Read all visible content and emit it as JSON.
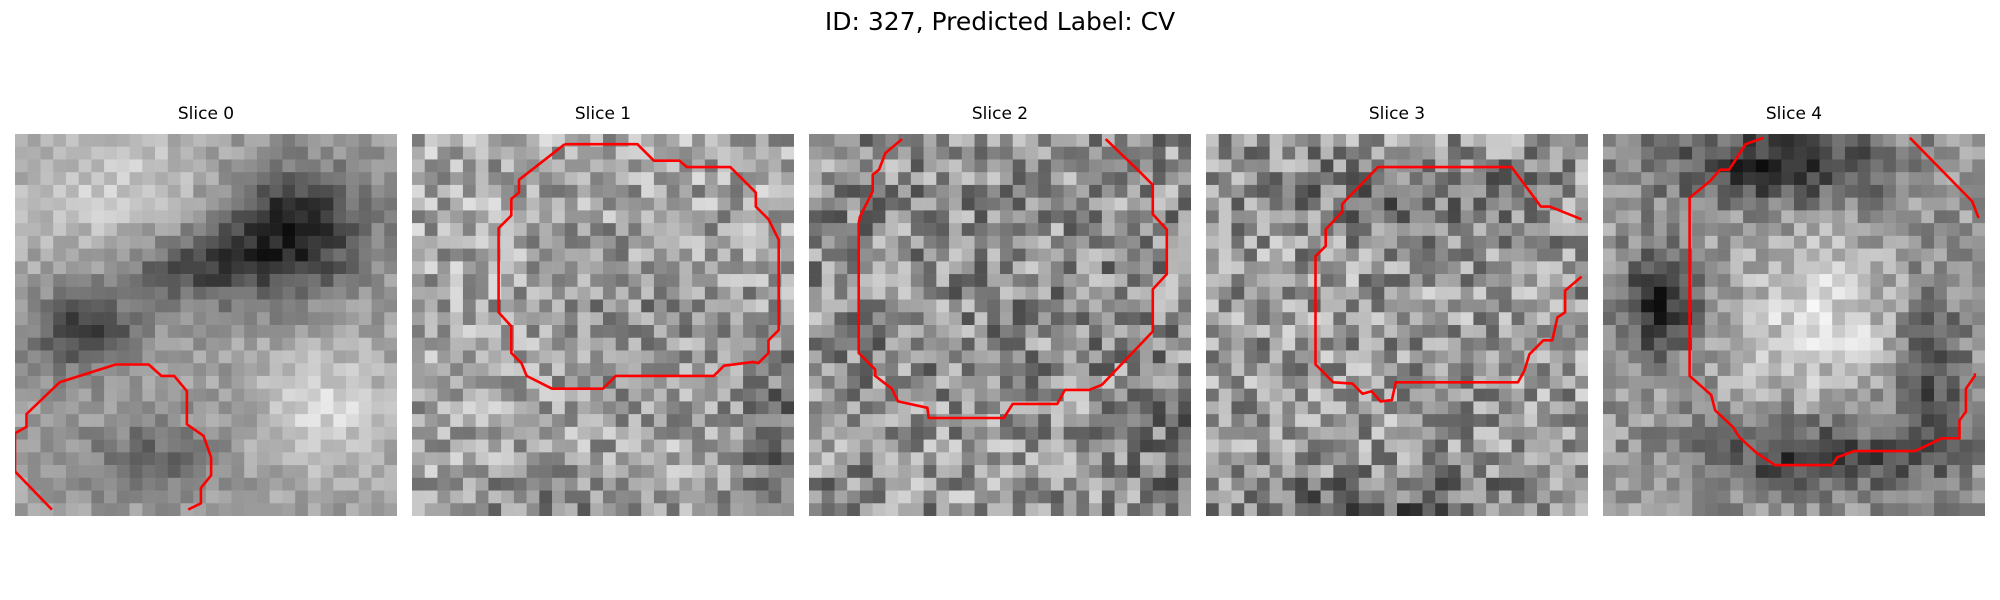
{
  "figure": {
    "title": "ID: 327, Predicted Label: CV",
    "contour_color": "#ff0000",
    "image_type": "grayscale-noisy-grid",
    "panels": [
      {
        "title": "Slice 0"
      },
      {
        "title": "Slice 1"
      },
      {
        "title": "Slice 2"
      },
      {
        "title": "Slice 3"
      },
      {
        "title": "Slice 4"
      }
    ]
  }
}
